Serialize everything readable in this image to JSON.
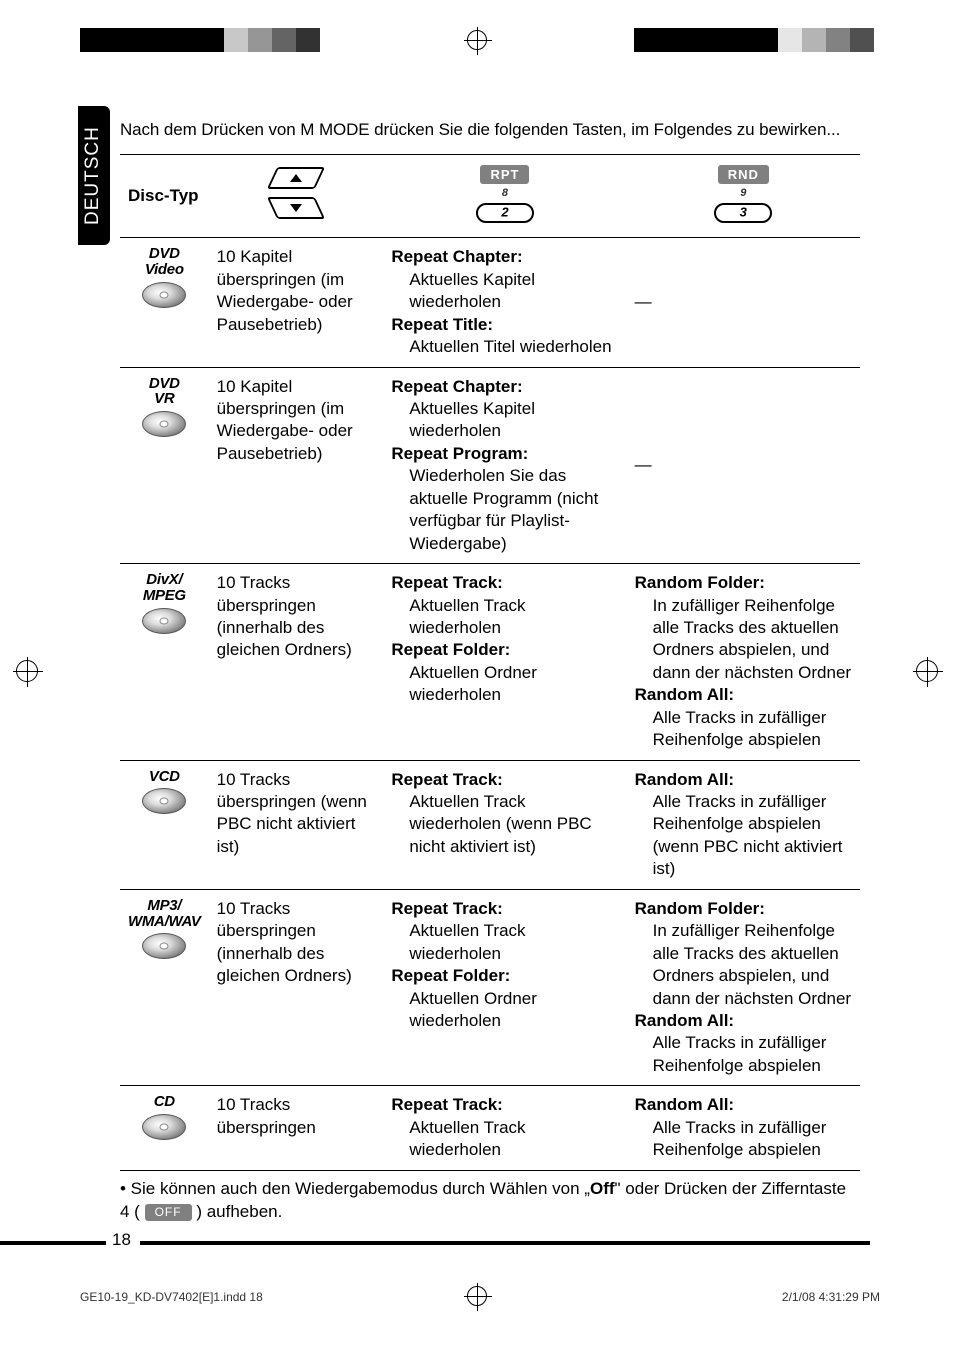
{
  "sideTab": "DEUTSCH",
  "intro": "Nach dem Drücken von M MODE drücken Sie die folgenden Tasten, im Folgendes zu bewirken...",
  "headers": {
    "discType": "Disc-Typ",
    "rpt": "RPT",
    "rptNum": "8",
    "rptKey": "2",
    "rnd": "RND",
    "rndNum": "9",
    "rndKey": "3"
  },
  "rows": [
    {
      "discLine1": "DVD",
      "discLine2": "Video",
      "colB": "10 Kapitel überspringen (im Wiedergabe- oder Pausebetrieb)",
      "colC": [
        {
          "term": "Repeat Chapter:",
          "desc": "Aktuelles Kapitel wiederholen"
        },
        {
          "term": "Repeat Title:",
          "desc": "Aktuellen Titel wiederholen"
        }
      ],
      "colD_dash": "—"
    },
    {
      "discLine1": "DVD",
      "discLine2": "VR",
      "colB": "10 Kapitel überspringen (im Wiedergabe- oder Pausebetrieb)",
      "colC": [
        {
          "term": "Repeat Chapter:",
          "desc": "Aktuelles Kapitel wiederholen"
        },
        {
          "term": "Repeat Program:",
          "desc": "Wiederholen Sie das aktuelle Programm (nicht verfügbar für Playlist-Wiedergabe)"
        }
      ],
      "colD_dash": "—"
    },
    {
      "discLine1": "DivX/",
      "discLine2": "MPEG",
      "colB": "10 Tracks überspringen (innerhalb des gleichen Ordners)",
      "colC": [
        {
          "term": "Repeat Track:",
          "desc": "Aktuellen Track wiederholen"
        },
        {
          "term": "Repeat Folder:",
          "desc": "Aktuellen Ordner wiederholen"
        }
      ],
      "colD": [
        {
          "term": "Random Folder:",
          "desc": "In zufälliger Reihenfolge alle Tracks des aktuellen Ordners abspielen, und dann der nächsten Ordner"
        },
        {
          "term": "Random All:",
          "desc": "Alle Tracks in zufälliger Reihenfolge abspielen"
        }
      ]
    },
    {
      "discLine1": "VCD",
      "discLine2": "",
      "colB": "10 Tracks überspringen (wenn PBC nicht aktiviert ist)",
      "colC": [
        {
          "term": "Repeat Track:",
          "desc": "Aktuellen Track wiederholen (wenn PBC nicht aktiviert ist)"
        }
      ],
      "colD": [
        {
          "term": "Random All:",
          "desc": "Alle Tracks in zufälliger Reihenfolge abspielen (wenn PBC nicht aktiviert ist)"
        }
      ]
    },
    {
      "discLine1": "MP3/",
      "discLine2": "WMA/WAV",
      "colB": "10 Tracks überspringen (innerhalb des gleichen Ordners)",
      "colC": [
        {
          "term": "Repeat Track:",
          "desc": "Aktuellen Track wiederholen"
        },
        {
          "term": "Repeat Folder:",
          "desc": "Aktuellen Ordner wiederholen"
        }
      ],
      "colD": [
        {
          "term": "Random Folder:",
          "desc": "In zufälliger Reihenfolge alle Tracks des aktuellen Ordners abspielen, und dann der nächsten Ordner"
        },
        {
          "term": "Random All:",
          "desc": "Alle Tracks in zufälliger Reihenfolge abspielen"
        }
      ]
    },
    {
      "discLine1": "CD",
      "discLine2": "",
      "colB": "10 Tracks überspringen",
      "colC": [
        {
          "term": "Repeat Track:",
          "desc": "Aktuellen Track wiederholen"
        }
      ],
      "colD": [
        {
          "term": "Random All:",
          "desc": "Alle Tracks in zufälliger Reihenfolge abspielen"
        }
      ]
    }
  ],
  "footnote_pre": "• Sie können auch den Wiedergabemodus durch Wählen von „",
  "footnote_off": "Off",
  "footnote_mid": "\" oder Drücken der Zifferntaste 4 (",
  "footnote_pill": "OFF",
  "footnote_post": ") aufheben.",
  "pageNumber": "18",
  "footerLeft": "GE10-19_KD-DV7402[E]1.indd   18",
  "footerRight": "2/1/08   4:31:29 PM",
  "colors": {
    "tab_bg": "#000000",
    "tab_fg": "#ffffff",
    "pill_bg": "#808080",
    "pill_fg": "#ffffff",
    "border": "#000000"
  }
}
